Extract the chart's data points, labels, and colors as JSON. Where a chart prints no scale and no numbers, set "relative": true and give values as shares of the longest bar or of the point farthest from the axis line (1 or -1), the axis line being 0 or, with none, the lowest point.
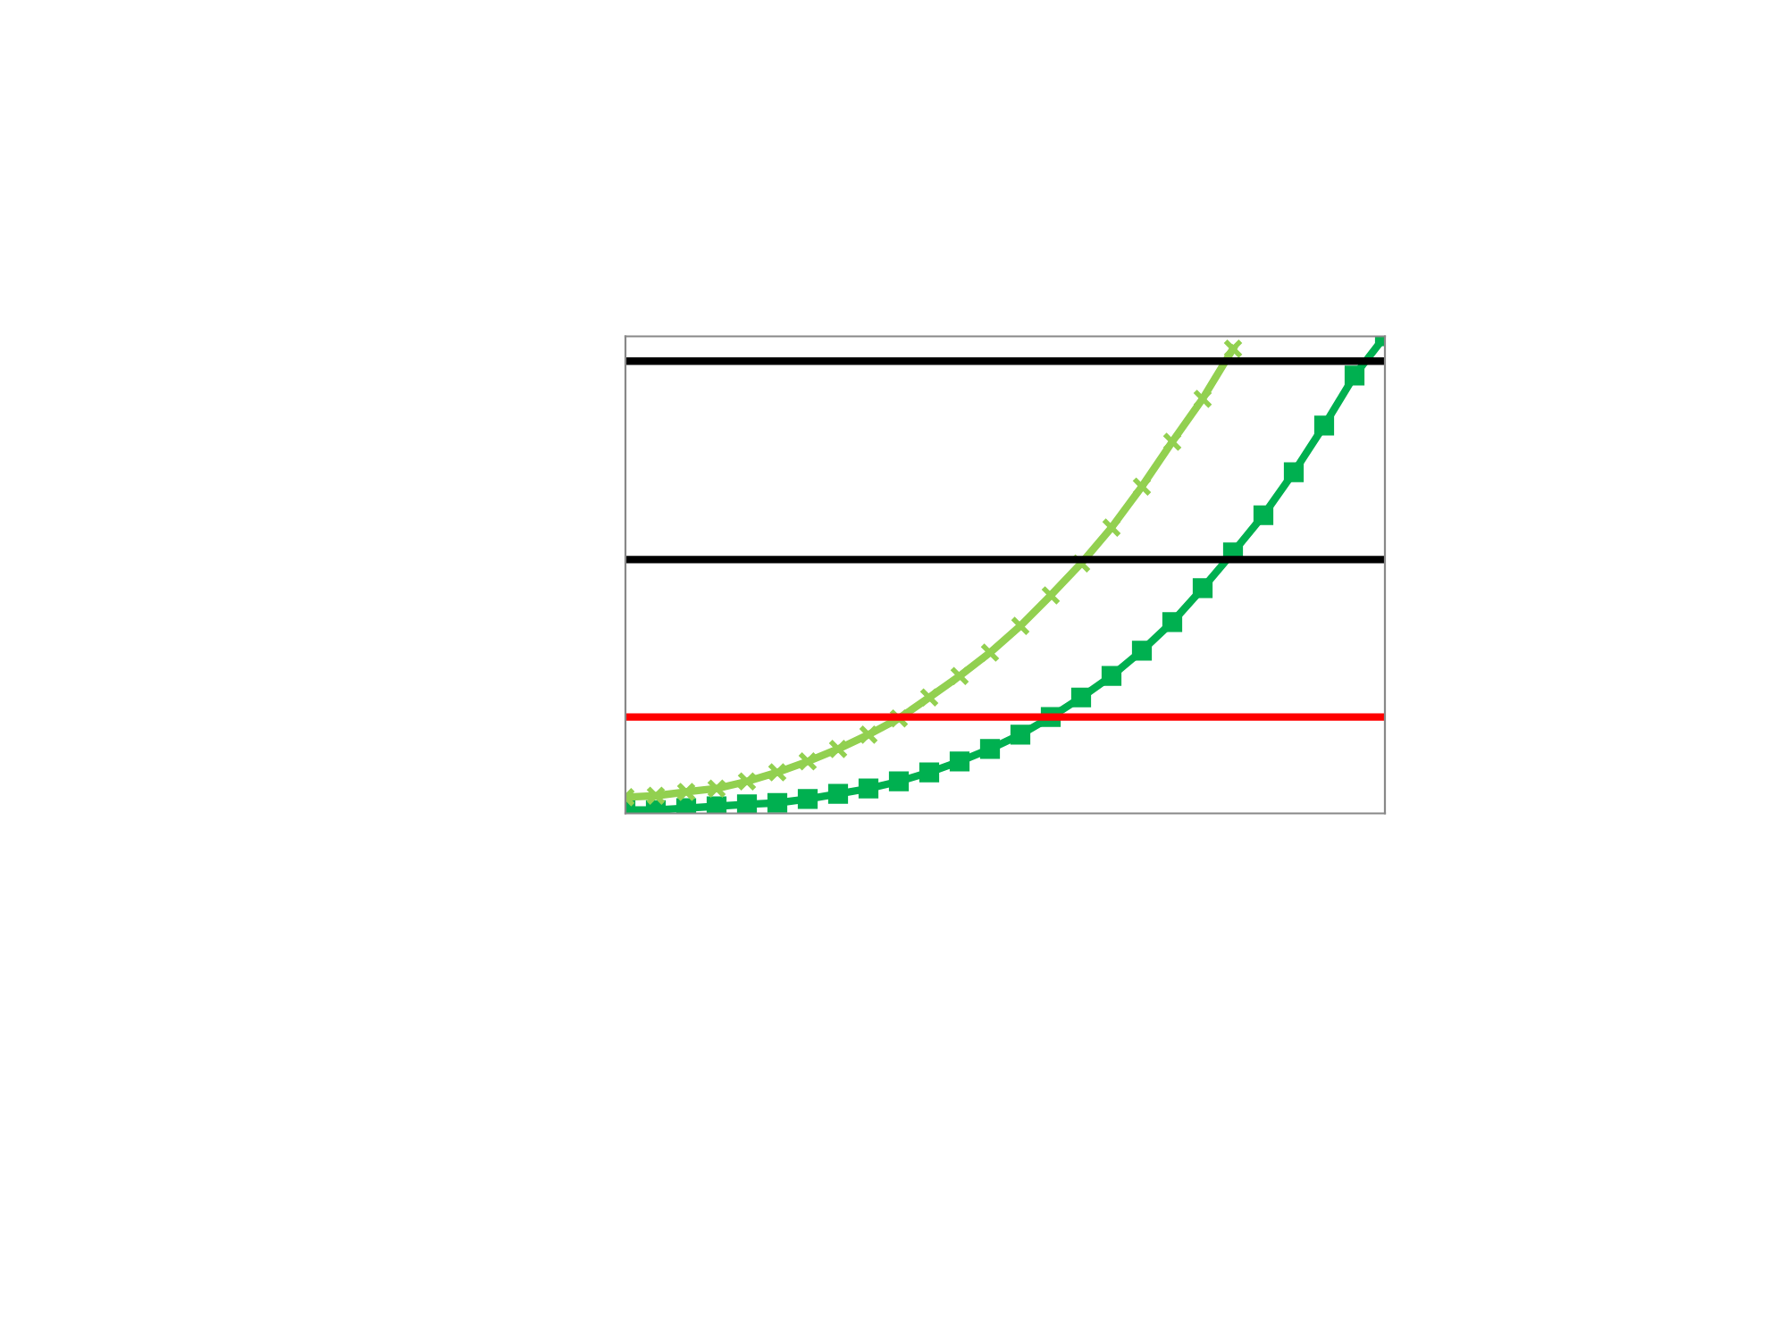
{
  "chart_data": {
    "type": "line",
    "relative": true,
    "categories": [
      null,
      null,
      null,
      null,
      null,
      null,
      null,
      null,
      null,
      null,
      null,
      null,
      null,
      null,
      null,
      null,
      null,
      null,
      null,
      null,
      null,
      null,
      null,
      null,
      null,
      null
    ],
    "series": [
      {
        "color": "#00b050",
        "marker": "square",
        "values": [
          0.007,
          0.007,
          0.011,
          0.015,
          0.019,
          0.022,
          0.03,
          0.041,
          0.052,
          0.067,
          0.086,
          0.109,
          0.135,
          0.165,
          0.202,
          0.243,
          0.288,
          0.341,
          0.401,
          0.472,
          0.547,
          0.625,
          0.715,
          0.813,
          0.918,
          1.0
        ]
      },
      {
        "color": "#92d050",
        "marker": "cross",
        "values": [
          0.034,
          0.037,
          0.045,
          0.052,
          0.067,
          0.086,
          0.109,
          0.135,
          0.165,
          0.199,
          0.243,
          0.288,
          0.337,
          0.393,
          0.457,
          0.524,
          0.599,
          0.685,
          0.779,
          0.869,
          0.974,
          null,
          null,
          null,
          null,
          null
        ]
      }
    ],
    "ref_lines": [
      {
        "axis": "y",
        "value": 0.948,
        "color": "#000000"
      },
      {
        "axis": "y",
        "value": 0.532,
        "color": "#000000"
      },
      {
        "axis": "y",
        "value": 0.202,
        "color": "#ff0000"
      }
    ],
    "line_style": "solid"
  }
}
